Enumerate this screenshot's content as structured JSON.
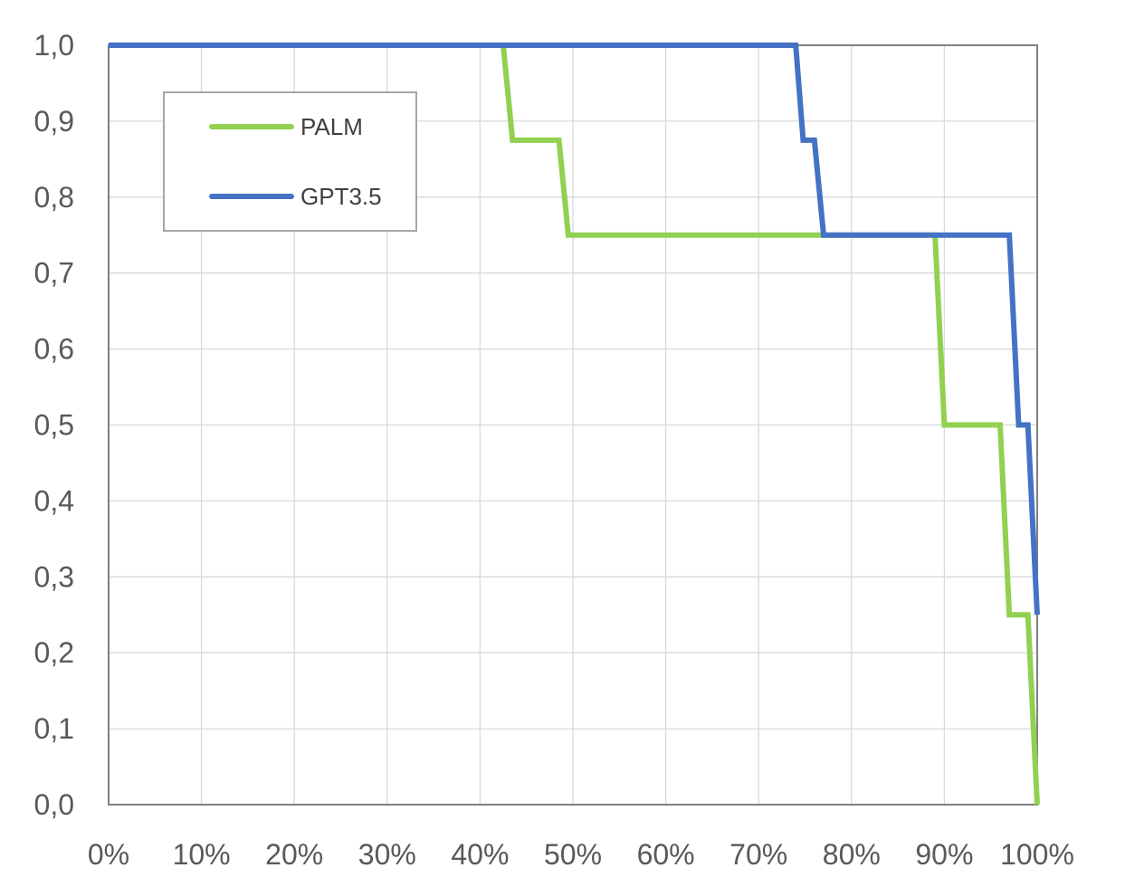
{
  "chart_data": {
    "type": "line",
    "title": "",
    "xlabel": "",
    "ylabel": "",
    "xlim": [
      0,
      100
    ],
    "ylim": [
      0,
      1
    ],
    "grid": true,
    "legend": "top-left",
    "x_ticks": [
      0,
      10,
      20,
      30,
      40,
      50,
      60,
      70,
      80,
      90,
      100
    ],
    "x_tick_labels": [
      "0%",
      "10%",
      "20%",
      "30%",
      "40%",
      "50%",
      "60%",
      "70%",
      "80%",
      "90%",
      "100%"
    ],
    "y_ticks": [
      0,
      0.1,
      0.2,
      0.3,
      0.4,
      0.5,
      0.6,
      0.7,
      0.8,
      0.9,
      1.0
    ],
    "y_tick_labels": [
      "0,0",
      "0,1",
      "0,2",
      "0,3",
      "0,4",
      "0,5",
      "0,6",
      "0,7",
      "0,8",
      "0,9",
      "1,0"
    ],
    "series": [
      {
        "name": "PALM",
        "color": "#92d050",
        "x": [
          0,
          42.5,
          43.5,
          48.5,
          49.5,
          89,
          90,
          96,
          97,
          99,
          100
        ],
        "y": [
          1.0,
          1.0,
          0.875,
          0.875,
          0.75,
          0.75,
          0.5,
          0.5,
          0.25,
          0.25,
          0.0
        ]
      },
      {
        "name": "GPT3.5",
        "color": "#4472c4",
        "x": [
          0,
          74,
          74.8,
          76,
          77,
          97,
          98,
          99,
          100
        ],
        "y": [
          1.0,
          1.0,
          0.875,
          0.875,
          0.75,
          0.75,
          0.5,
          0.5,
          0.25
        ]
      }
    ]
  }
}
